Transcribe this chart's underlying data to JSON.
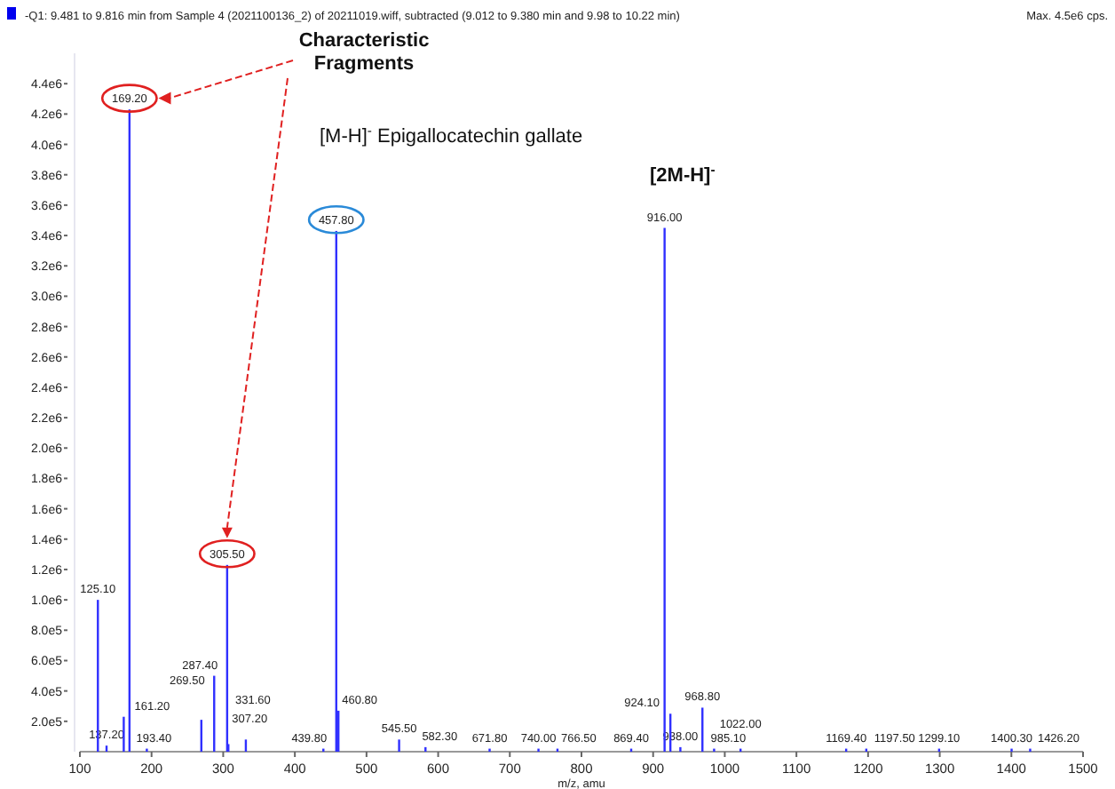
{
  "chart_data": {
    "type": "bar",
    "title": "-Q1: 9.481 to 9.816 min from Sample 4 (2021100136_2) of 20211019.wiff, subtracted (9.012 to 9.380 min and 9.98 to 10.22 min)",
    "xlabel": "m/z, amu",
    "annotations": [
      "Max. 4.5e6 cps.",
      "Characteristic Fragments",
      "[M-H]$^{-}$ Epigallocatechin gallate",
      "[2M-H]$^{-}$",
      {
        "text": "125.10",
        "x": 125.1,
        "y": 1000000
      },
      {
        "text": "137.20",
        "x": 137.2,
        "y": 40000
      },
      {
        "text": "161.20",
        "x": 161.2,
        "y": 230000
      },
      {
        "text": "169.20",
        "x": 169.2,
        "y": 4230000
      },
      {
        "text": "193.40",
        "x": 193.4,
        "y": 20000
      },
      {
        "text": "269.50",
        "x": 269.5,
        "y": 210000
      },
      {
        "text": "287.40",
        "x": 287.4,
        "y": 500000
      },
      {
        "text": "305.50",
        "x": 305.5,
        "y": 1230000
      },
      {
        "text": "307.20",
        "x": 307.2,
        "y": 50000
      },
      {
        "text": "331.60",
        "x": 331.6,
        "y": 80000
      },
      {
        "text": "439.80",
        "x": 439.8,
        "y": 20000
      },
      {
        "text": "457.80",
        "x": 457.8,
        "y": 3430000
      },
      {
        "text": "460.80",
        "x": 460.8,
        "y": 270000
      },
      {
        "text": "545.50",
        "x": 545.5,
        "y": 80000
      },
      {
        "text": "582.30",
        "x": 582.3,
        "y": 30000
      },
      {
        "text": "671.80",
        "x": 671.8,
        "y": 20000
      },
      {
        "text": "740.00",
        "x": 740.0,
        "y": 20000
      },
      {
        "text": "766.50",
        "x": 766.5,
        "y": 20000
      },
      {
        "text": "869.40",
        "x": 869.4,
        "y": 20000
      },
      {
        "text": "916.00",
        "x": 916.0,
        "y": 3450000
      },
      {
        "text": "924.10",
        "x": 924.1,
        "y": 250000
      },
      {
        "text": "938.00",
        "x": 938.0,
        "y": 30000
      },
      {
        "text": "968.80",
        "x": 968.8,
        "y": 290000
      },
      {
        "text": "985.10",
        "x": 985.1,
        "y": 20000
      },
      {
        "text": "1022.00",
        "x": 1022.0,
        "y": 20000
      },
      {
        "text": "1169.40",
        "x": 1169.4,
        "y": 20000
      },
      {
        "text": "1197.50",
        "x": 1197.5,
        "y": 20000
      },
      {
        "text": "1299.10",
        "x": 1299.1,
        "y": 20000
      },
      {
        "text": "1400.30",
        "x": 1400.3,
        "y": 20000
      },
      {
        "text": "1426.20",
        "x": 1426.2,
        "y": 20000
      }
    ],
    "x": [
      125.1,
      137.2,
      161.2,
      169.2,
      193.4,
      269.5,
      287.4,
      305.5,
      307.2,
      331.6,
      439.8,
      457.8,
      460.8,
      545.5,
      582.3,
      671.8,
      740.0,
      766.5,
      869.4,
      916.0,
      924.1,
      938.0,
      968.8,
      985.1,
      1022.0,
      1169.4,
      1197.5,
      1299.1,
      1400.3,
      1426.2
    ],
    "values": [
      1000000,
      40000,
      230000,
      4230000,
      20000,
      210000,
      500000,
      1230000,
      50000,
      80000,
      20000,
      3430000,
      270000,
      80000,
      30000,
      20000,
      20000,
      20000,
      20000,
      3450000,
      250000,
      30000,
      290000,
      20000,
      20000,
      20000,
      20000,
      20000,
      20000,
      20000
    ],
    "color": "#3030ff",
    "xlim": [
      100,
      1500
    ],
    "xticks": [
      100,
      200,
      300,
      400,
      500,
      600,
      700,
      800,
      900,
      1000,
      1100,
      1200,
      1300,
      1400,
      1500
    ],
    "ylim": [
      0,
      4600000
    ],
    "yticks": [
      {
        "value": 200000,
        "label": "2.0e5"
      },
      {
        "value": 400000,
        "label": "4.0e5"
      },
      {
        "value": 600000,
        "label": "6.0e5"
      },
      {
        "value": 800000,
        "label": "8.0e5"
      },
      {
        "value": 1000000,
        "label": "1.0e6"
      },
      {
        "value": 1200000,
        "label": "1.2e6"
      },
      {
        "value": 1400000,
        "label": "1.4e6"
      },
      {
        "value": 1600000,
        "label": "1.6e6"
      },
      {
        "value": 1800000,
        "label": "1.8e6"
      },
      {
        "value": 2000000,
        "label": "2.0e6"
      },
      {
        "value": 2200000,
        "label": "2.2e6"
      },
      {
        "value": 2400000,
        "label": "2.4e6"
      },
      {
        "value": 2600000,
        "label": "2.6e6"
      },
      {
        "value": 2800000,
        "label": "2.8e6"
      },
      {
        "value": 3000000,
        "label": "3.0e6"
      },
      {
        "value": 3200000,
        "label": "3.2e6"
      },
      {
        "value": 3400000,
        "label": "3.4e6"
      },
      {
        "value": 3600000,
        "label": "3.6e6"
      },
      {
        "value": 3800000,
        "label": "3.8e6"
      },
      {
        "value": 4000000,
        "label": "4.0e6"
      },
      {
        "value": 4200000,
        "label": "4.2e6"
      },
      {
        "value": 4400000,
        "label": "4.4e6"
      }
    ],
    "grid": false
  }
}
